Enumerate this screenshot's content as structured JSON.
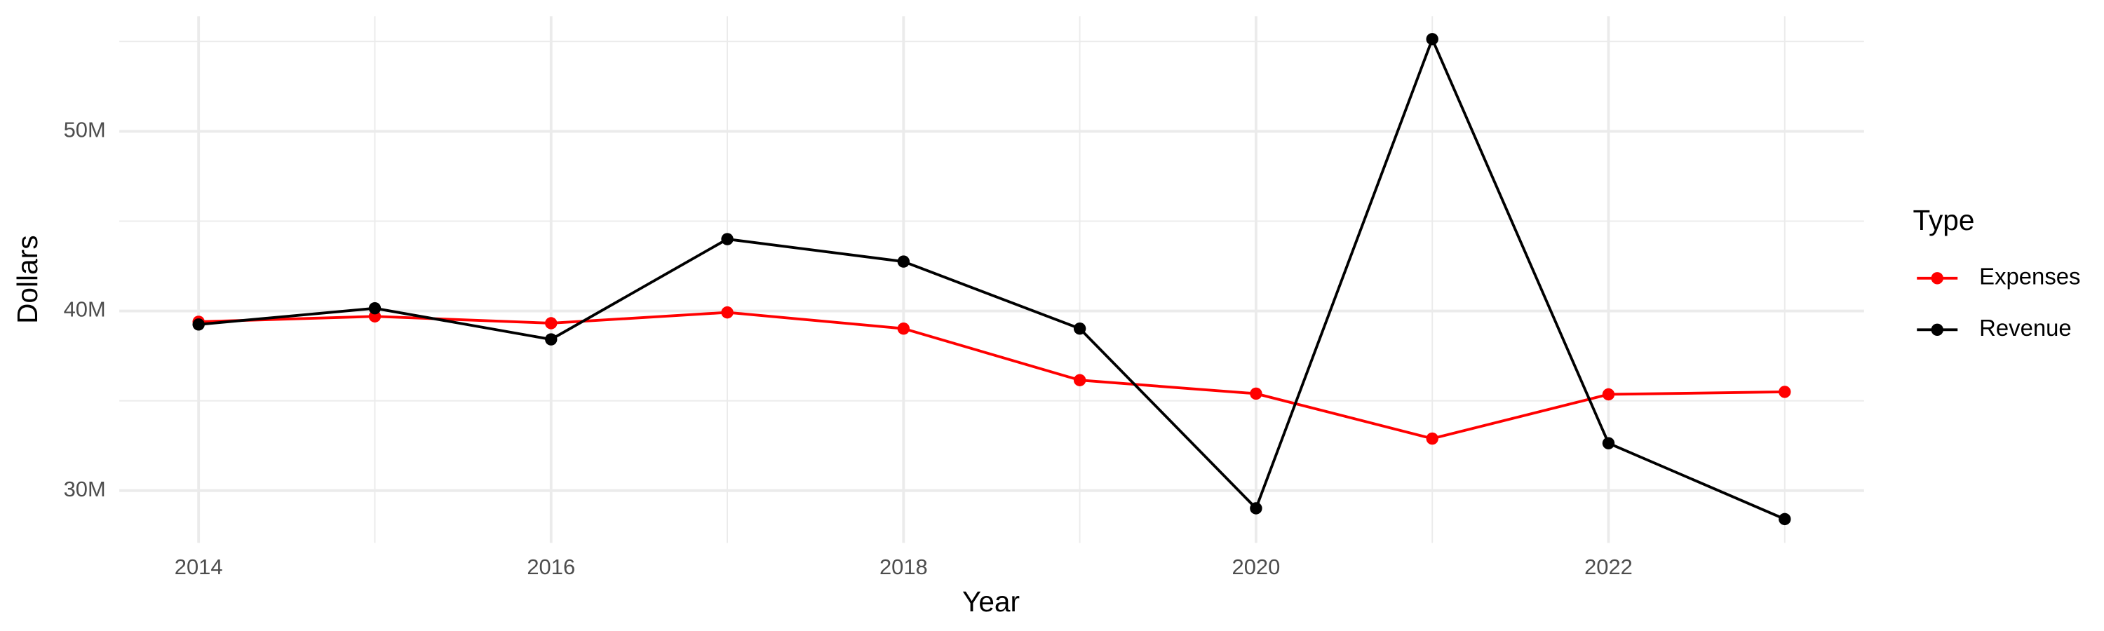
{
  "chart_data": {
    "type": "line",
    "x_label": "Year",
    "y_label": "Dollars",
    "x": [
      2014,
      2015,
      2016,
      2017,
      2018,
      2019,
      2020,
      2021,
      2022,
      2023
    ],
    "series": [
      {
        "name": "Expenses",
        "color": "#ff0000",
        "values": [
          39400000,
          39700000,
          39320000,
          39920000,
          39020000,
          36150000,
          35400000,
          32900000,
          35360000,
          35500000
        ]
      },
      {
        "name": "Revenue",
        "color": "#000000",
        "values": [
          39250000,
          40150000,
          38420000,
          44000000,
          42750000,
          39020000,
          29020000,
          55130000,
          32640000,
          28420000
        ]
      }
    ],
    "xlim": [
      2013.55,
      2023.45
    ],
    "ylim": [
      27100000,
      56400000
    ],
    "xticks": [
      2014,
      2016,
      2018,
      2020,
      2022
    ],
    "yticks": [
      {
        "value": 30000000,
        "label": "30M"
      },
      {
        "value": 40000000,
        "label": "40M"
      },
      {
        "value": 50000000,
        "label": "50M"
      }
    ],
    "grid": true,
    "legend_title": "Type",
    "legend_position": "right"
  }
}
